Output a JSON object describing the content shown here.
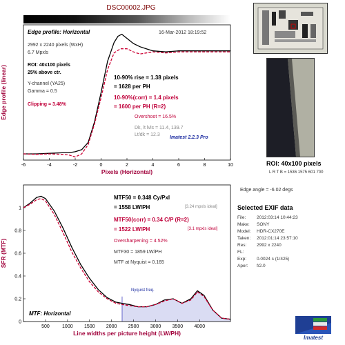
{
  "header": {
    "filename": "DSC00002.JPG"
  },
  "edge_panel": {
    "title": "Edge profile: Horizontal",
    "timestamp": "16-Mar-2012 18:19:52",
    "lines_left": [
      "2992 x 2240 pixels (WxH)",
      "6.7 Mpxls"
    ],
    "roi": "ROI: 40x100 pixels",
    "roi2": "25% above ctr.",
    "channel": "Y-channel  (YA25)",
    "gamma": "Gamma = 0.5",
    "clipping": "Clipping =  3.48%",
    "rise1": "10-90% rise = 1.38 pixels",
    "rise1b": "= 1628 per PH",
    "rise2": "10-90%(corr) = 1.4 pixels",
    "rise2b": "= 1600 per PH   (R=2)",
    "overshoot": "Overshoot = 16.5%",
    "dk": "Dk, lt lvls = 11.4, 139.7",
    "ltdk": "Lt/dk = 12.3",
    "brand": "Imatest 2.2.3 Pro",
    "xlabel": "Pixels (Horizontal)",
    "ylabel": "Edge profile (linear)"
  },
  "roi_info": {
    "title": "ROI: 40x100 pixels",
    "ltrb": "L R  T B = 1536 1575  601 700",
    "edge_angle": "Edge angle = -6.02 degs"
  },
  "mtf_panel": {
    "mtf50": "MTF50 = 0.348 Cy/Pxl",
    "mtf50b": "= 1558 LW/PH",
    "mtf50b_ideal": "[3.24 mpxls ideal]",
    "mtf50c": "MTF50(corr) = 0.34 C/P  (R=2)",
    "mtf50d": "= 1522 LW/PH",
    "mtf50d_ideal": "[3.1 mpxls ideal]",
    "oversharp": "Oversharpening = 4.52%",
    "mtf30": "MTF30 = 1859 LW/PH",
    "nyq": "MTF at Nyquist = 0.165",
    "nyq_label": "Nyquist freq.",
    "panel_label": "MTF: Horizontal",
    "xlabel": "Line widths per picture height (LW/PH)",
    "ylabel": "SFR (MTF)"
  },
  "exif": {
    "title": "Selected EXIF data",
    "rows": [
      {
        "k": "File:",
        "v": "2012:03:14 10:44:23"
      },
      {
        "k": "Make:",
        "v": "SONY"
      },
      {
        "k": "Model:",
        "v": "HDR-CX270E"
      },
      {
        "k": "Taken:",
        "v": "2012:01:14 23:57:10"
      },
      {
        "k": "Res:",
        "v": "2992 x 2240"
      },
      {
        "k": "FL:",
        "v": ""
      },
      {
        "k": "Exp:",
        "v": "0.0024 s  (1/425)"
      },
      {
        "k": "Aper:",
        "v": "f/2.0"
      }
    ]
  },
  "logo": {
    "text": "Imatest"
  },
  "colors": {
    "measured": "#000000",
    "corrected": "#cc0033",
    "nyquist_fill": "#dadcf3",
    "nyquist_line": "#4040c0"
  },
  "chart_data": [
    {
      "type": "line",
      "title": "Edge profile: Horizontal",
      "xlabel": "Pixels (Horizontal)",
      "ylabel": "Edge profile (linear)",
      "xlim": [
        -6,
        10
      ],
      "xticks": [
        -6,
        -4,
        -2,
        0,
        2,
        4,
        6,
        8,
        10
      ],
      "ylim": [
        -0.05,
        1.25
      ],
      "series": [
        {
          "name": "measured",
          "x": [
            -6,
            -5,
            -4,
            -3,
            -2.5,
            -2,
            -1.5,
            -1,
            -0.5,
            0,
            0.5,
            1,
            1.3,
            1.6,
            2,
            2.5,
            3,
            3.5,
            4,
            5,
            6,
            7,
            8,
            9,
            10
          ],
          "y": [
            0.01,
            0.01,
            0.015,
            0.02,
            0.02,
            0.03,
            0.05,
            0.12,
            0.32,
            0.6,
            0.9,
            1.08,
            1.14,
            1.16,
            1.12,
            1.07,
            1.04,
            1.02,
            1.0,
            0.99,
            1.0,
            1.0,
            1.0,
            1.0,
            1.0
          ]
        },
        {
          "name": "corrected",
          "x": [
            -6,
            -5,
            -4,
            -3,
            -2.5,
            -2,
            -1.5,
            -1,
            -0.5,
            0,
            0.5,
            1,
            1.5,
            2,
            2.5,
            3,
            3.5,
            4,
            5,
            6,
            7,
            8,
            9,
            10
          ],
          "y": [
            0.01,
            0.005,
            0.01,
            0.005,
            0.0,
            -0.02,
            0.01,
            0.1,
            0.3,
            0.55,
            0.82,
            0.98,
            1.02,
            1.02,
            0.99,
            0.97,
            0.98,
            0.99,
            0.98,
            0.99,
            0.99,
            0.99,
            0.99,
            0.99
          ]
        }
      ]
    },
    {
      "type": "line",
      "title": "MTF: Horizontal",
      "xlabel": "Line widths per picture height (LW/PH)",
      "ylabel": "SFR (MTF)",
      "xlim": [
        0,
        4700
      ],
      "xticks": [
        500,
        1000,
        1500,
        2000,
        2500,
        3000,
        3500,
        4000
      ],
      "ylim": [
        0,
        1.2
      ],
      "yticks": [
        0,
        0.2,
        0.4,
        0.6,
        0.8,
        1
      ],
      "nyquist": 2240,
      "series": [
        {
          "name": "measured",
          "x": [
            0,
            150,
            300,
            400,
            500,
            700,
            900,
            1100,
            1300,
            1500,
            1700,
            1900,
            2100,
            2240,
            2400,
            2600,
            2800,
            3000,
            3200,
            3400,
            3600,
            3800,
            3950,
            4100,
            4300,
            4500,
            4700
          ],
          "y": [
            1.0,
            1.04,
            1.09,
            1.1,
            1.08,
            0.97,
            0.82,
            0.65,
            0.5,
            0.38,
            0.28,
            0.21,
            0.17,
            0.16,
            0.15,
            0.13,
            0.13,
            0.15,
            0.19,
            0.2,
            0.16,
            0.2,
            0.27,
            0.23,
            0.1,
            0.03,
            0.02
          ]
        },
        {
          "name": "corrected",
          "x": [
            0,
            150,
            300,
            400,
            500,
            700,
            900,
            1100,
            1300,
            1500,
            1700,
            1900,
            2100,
            2240,
            2400,
            2600,
            2800,
            3000,
            3200,
            3400,
            3600,
            3800,
            3950,
            4100,
            4300,
            4500,
            4700
          ],
          "y": [
            1.0,
            1.03,
            1.07,
            1.08,
            1.06,
            0.94,
            0.78,
            0.61,
            0.47,
            0.35,
            0.26,
            0.2,
            0.16,
            0.15,
            0.14,
            0.13,
            0.13,
            0.15,
            0.18,
            0.2,
            0.16,
            0.19,
            0.26,
            0.22,
            0.1,
            0.03,
            0.02
          ]
        }
      ]
    }
  ]
}
